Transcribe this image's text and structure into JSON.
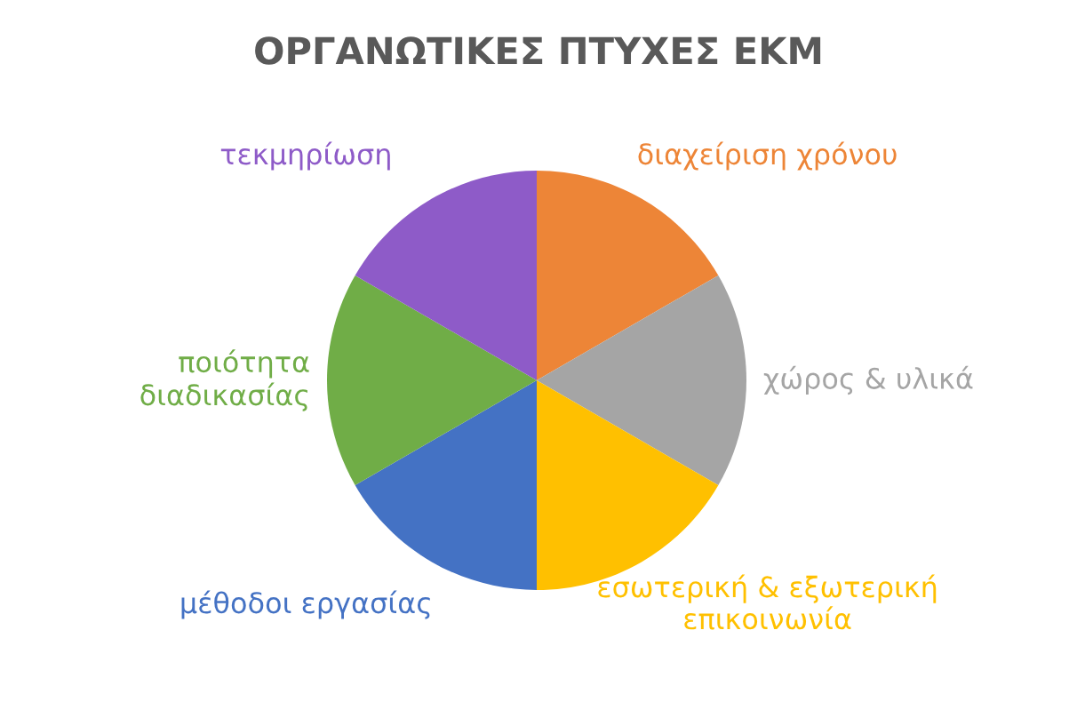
{
  "chart_data": {
    "type": "pie",
    "title": "ΟΡΓΑΝΩΤΙΚΕΣ ΠΤΥΧΕΣ ΕΚΜ",
    "categories": [
      "διαχείριση χρόνου",
      "χώρος & υλικά",
      "εσωτερική & εξωτερική\nεπικοινωνία",
      "μέθοδοι εργασίας",
      "ποιότητα\nδιαδικασίας",
      "τεκμηρίωση"
    ],
    "values": [
      16.67,
      16.67,
      16.67,
      16.67,
      16.67,
      16.67
    ],
    "colors": [
      "#ed8537",
      "#a5a5a5",
      "#ffc000",
      "#4472c4",
      "#70ad47",
      "#8e5bc8"
    ],
    "legend": false
  }
}
